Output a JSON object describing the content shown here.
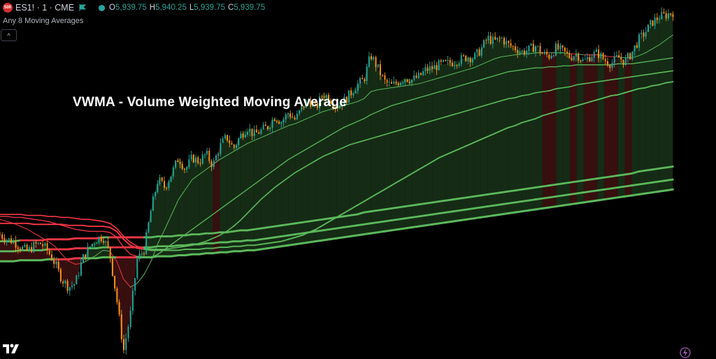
{
  "header": {
    "symbol_badge": "500",
    "symbol": "ES1! · 1 · CME",
    "ohlc": [
      {
        "k": "O",
        "v": "5,939.75"
      },
      {
        "k": "H",
        "v": "5,940.25"
      },
      {
        "k": "L",
        "v": "5,939.75"
      },
      {
        "k": "C",
        "v": "5,939.75"
      }
    ],
    "indicator": "Any 8 Moving Averages",
    "collapse_glyph": "^"
  },
  "overlay_title": "VWMA - Volume Weighted Moving Average",
  "colors": {
    "up": "#26a69a",
    "down": "#f7931a",
    "ma_bull": "#5cb85c",
    "ma_bear": "#f23645",
    "fill_bull": "#1c3a1c",
    "fill_bear": "#4a1414"
  },
  "icons": [
    "tradingview-logo-icon",
    "flag-icon",
    "status-dot-icon",
    "chevron-up-icon",
    "lightning-icon"
  ],
  "chart_data": {
    "type": "line",
    "title": "",
    "x": [
      0,
      10,
      20,
      30,
      40,
      50,
      60,
      70,
      80,
      90,
      100,
      110,
      120,
      130,
      140,
      150,
      160,
      170,
      180,
      190,
      200,
      210,
      220,
      230,
      240,
      250,
      260,
      270,
      280,
      290,
      300,
      310,
      320,
      330,
      340,
      350,
      360,
      370,
      380,
      390,
      400,
      410,
      420,
      430,
      440,
      450,
      460,
      470,
      480,
      490,
      500,
      510,
      520,
      530,
      540,
      550,
      560,
      570,
      580,
      590,
      600,
      610,
      620,
      630,
      640,
      650,
      660,
      670,
      680,
      690,
      700,
      710,
      720,
      730,
      740,
      750,
      760,
      770,
      780,
      790,
      800,
      810,
      820,
      830,
      840,
      850,
      860,
      870,
      880,
      890,
      900,
      910,
      920,
      930,
      940,
      950,
      960,
      970,
      980
    ],
    "series": [
      {
        "values": [
          5765,
          5760,
          5758,
          5752,
          5748,
          5754,
          5756,
          5748,
          5736,
          5720,
          5712,
          5716,
          5740,
          5752,
          5760,
          5763,
          5745,
          5700,
          5648,
          5685,
          5740,
          5750,
          5790,
          5820,
          5812,
          5826,
          5842,
          5830,
          5842,
          5838,
          5846,
          5834,
          5853,
          5863,
          5851,
          5864,
          5872,
          5865,
          5869,
          5873,
          5883,
          5878,
          5887,
          5880,
          5892,
          5900,
          5891,
          5906,
          5902,
          5893,
          5898,
          5906,
          5915,
          5920,
          5945,
          5932,
          5918,
          5914,
          5918,
          5922,
          5920,
          5923,
          5930,
          5932,
          5935,
          5936,
          5938,
          5940,
          5943,
          5942,
          5950,
          5962,
          5958,
          5962,
          5955,
          5952,
          5948,
          5950,
          5954,
          5946,
          5944,
          5952,
          5948,
          5943,
          5946,
          5938,
          5944,
          5947,
          5940,
          5936,
          5943,
          5938,
          5947,
          5960,
          5968,
          5978,
          5983,
          5985,
          5988
        ]
      },
      {
        "values": [
          5780,
          5778,
          5776,
          5773,
          5770,
          5766,
          5762,
          5758,
          5753,
          5745,
          5738,
          5735,
          5736,
          5740,
          5744,
          5749,
          5748,
          5738,
          5720,
          5712,
          5716,
          5725,
          5738,
          5756,
          5770,
          5785,
          5800,
          5810,
          5820,
          5825,
          5830,
          5835,
          5840,
          5844,
          5848,
          5852,
          5856,
          5859,
          5862,
          5865,
          5868,
          5871,
          5874,
          5876,
          5879,
          5882,
          5885,
          5888,
          5890,
          5892,
          5894,
          5896,
          5898,
          5901,
          5908,
          5910,
          5911,
          5912,
          5913,
          5914,
          5915,
          5916,
          5918,
          5920,
          5922,
          5924,
          5926,
          5928,
          5930,
          5932,
          5935,
          5938,
          5941,
          5943,
          5944,
          5945,
          5946,
          5946,
          5947,
          5947,
          5947,
          5947,
          5947,
          5946,
          5946,
          5945,
          5945,
          5945,
          5944,
          5943,
          5943,
          5942,
          5942,
          5944,
          5947,
          5951,
          5955,
          5960,
          5965
        ]
      },
      {
        "values": [
          5783,
          5783,
          5782,
          5782,
          5781,
          5780,
          5779,
          5778,
          5776,
          5774,
          5772,
          5770,
          5769,
          5768,
          5768,
          5768,
          5767,
          5762,
          5752,
          5745,
          5743,
          5742,
          5742,
          5745,
          5750,
          5755,
          5760,
          5765,
          5770,
          5775,
          5780,
          5785,
          5790,
          5795,
          5800,
          5805,
          5810,
          5815,
          5820,
          5825,
          5830,
          5835,
          5840,
          5844,
          5848,
          5852,
          5856,
          5860,
          5864,
          5868,
          5872,
          5875,
          5878,
          5881,
          5885,
          5888,
          5891,
          5894,
          5896,
          5898,
          5900,
          5902,
          5904,
          5906,
          5908,
          5910,
          5912,
          5914,
          5916,
          5918,
          5920,
          5922,
          5924,
          5926,
          5928,
          5929,
          5930,
          5931,
          5932,
          5932,
          5933,
          5933,
          5934,
          5934,
          5935,
          5935,
          5935,
          5935,
          5935,
          5935,
          5936,
          5936,
          5936,
          5937,
          5938,
          5939,
          5940,
          5941,
          5942
        ]
      },
      {
        "values": [
          5785,
          5785,
          5785,
          5785,
          5784,
          5784,
          5784,
          5783,
          5783,
          5782,
          5782,
          5781,
          5780,
          5780,
          5779,
          5778,
          5776,
          5771,
          5763,
          5757,
          5753,
          5751,
          5750,
          5750,
          5750,
          5751,
          5752,
          5753,
          5754,
          5756,
          5758,
          5761,
          5764,
          5768,
          5773,
          5779,
          5786,
          5793,
          5800,
          5806,
          5812,
          5817,
          5822,
          5827,
          5831,
          5835,
          5839,
          5843,
          5846,
          5849,
          5852,
          5855,
          5857,
          5859,
          5861,
          5863,
          5865,
          5867,
          5869,
          5871,
          5873,
          5875,
          5877,
          5879,
          5881,
          5883,
          5885,
          5887,
          5889,
          5891,
          5893,
          5895,
          5897,
          5899,
          5901,
          5902,
          5904,
          5905,
          5907,
          5908,
          5909,
          5911,
          5912,
          5913,
          5915,
          5916,
          5917,
          5918,
          5919,
          5920,
          5921,
          5922,
          5923,
          5924,
          5925,
          5926,
          5927,
          5928,
          5929
        ]
      },
      {
        "values": [
          5776,
          5776,
          5776,
          5776,
          5776,
          5775,
          5775,
          5775,
          5775,
          5775,
          5774,
          5774,
          5774,
          5773,
          5773,
          5773,
          5772,
          5768,
          5760,
          5754,
          5751,
          5750,
          5749,
          5749,
          5749,
          5749,
          5749,
          5750,
          5750,
          5750,
          5751,
          5751,
          5752,
          5752,
          5753,
          5753,
          5754,
          5754,
          5755,
          5756,
          5757,
          5758,
          5760,
          5762,
          5764,
          5767,
          5770,
          5774,
          5778,
          5782,
          5786,
          5790,
          5794,
          5798,
          5802,
          5806,
          5810,
          5814,
          5818,
          5822,
          5826,
          5830,
          5834,
          5838,
          5842,
          5845,
          5848,
          5851,
          5854,
          5857,
          5860,
          5863,
          5866,
          5869,
          5872,
          5874,
          5877,
          5879,
          5881,
          5884,
          5886,
          5888,
          5890,
          5892,
          5894,
          5896,
          5898,
          5900,
          5902,
          5904,
          5905,
          5907,
          5909,
          5911,
          5912,
          5914,
          5915,
          5917,
          5918
        ]
      },
      {
        "values": [
          5758,
          5758,
          5758,
          5759,
          5759,
          5759,
          5759,
          5760,
          5760,
          5760,
          5760,
          5761,
          5761,
          5761,
          5761,
          5762,
          5762,
          5762,
          5762,
          5762,
          5762,
          5762,
          5762,
          5763,
          5763,
          5763,
          5764,
          5764,
          5765,
          5765,
          5766,
          5766,
          5767,
          5767,
          5768,
          5769,
          5769,
          5770,
          5771,
          5772,
          5773,
          5774,
          5775,
          5776,
          5777,
          5778,
          5779,
          5780,
          5781,
          5782,
          5783,
          5784,
          5785,
          5787,
          5788,
          5789,
          5790,
          5791,
          5792,
          5793,
          5794,
          5795,
          5796,
          5797,
          5798,
          5799,
          5800,
          5801,
          5802,
          5803,
          5804,
          5805,
          5806,
          5807,
          5808,
          5809,
          5810,
          5811,
          5812,
          5813,
          5814,
          5815,
          5816,
          5817,
          5818,
          5819,
          5820,
          5821,
          5822,
          5823,
          5824,
          5825,
          5826,
          5828,
          5829,
          5830,
          5831,
          5832,
          5833
        ]
      },
      {
        "values": [
          5748,
          5748,
          5748,
          5749,
          5749,
          5749,
          5749,
          5750,
          5750,
          5750,
          5750,
          5751,
          5751,
          5751,
          5751,
          5752,
          5752,
          5752,
          5752,
          5752,
          5752,
          5752,
          5752,
          5753,
          5753,
          5753,
          5754,
          5754,
          5755,
          5755,
          5756,
          5756,
          5757,
          5757,
          5758,
          5758,
          5759,
          5759,
          5760,
          5761,
          5762,
          5763,
          5764,
          5765,
          5766,
          5767,
          5768,
          5769,
          5770,
          5771,
          5772,
          5773,
          5774,
          5775,
          5776,
          5777,
          5778,
          5779,
          5780,
          5781,
          5782,
          5783,
          5784,
          5785,
          5786,
          5787,
          5788,
          5789,
          5790,
          5791,
          5792,
          5793,
          5794,
          5795,
          5796,
          5797,
          5798,
          5799,
          5800,
          5801,
          5802,
          5803,
          5804,
          5805,
          5806,
          5807,
          5808,
          5809,
          5810,
          5811,
          5812,
          5813,
          5814,
          5815,
          5816,
          5817,
          5818,
          5819,
          5820
        ]
      },
      {
        "values": [
          5738,
          5738,
          5738,
          5739,
          5739,
          5739,
          5739,
          5740,
          5740,
          5740,
          5740,
          5741,
          5741,
          5741,
          5741,
          5742,
          5742,
          5742,
          5742,
          5742,
          5742,
          5742,
          5742,
          5743,
          5743,
          5743,
          5744,
          5744,
          5745,
          5745,
          5746,
          5746,
          5747,
          5747,
          5748,
          5748,
          5749,
          5749,
          5750,
          5751,
          5752,
          5753,
          5754,
          5755,
          5756,
          5757,
          5758,
          5759,
          5760,
          5761,
          5762,
          5763,
          5764,
          5765,
          5766,
          5767,
          5768,
          5769,
          5770,
          5771,
          5772,
          5773,
          5774,
          5775,
          5776,
          5777,
          5778,
          5779,
          5780,
          5781,
          5782,
          5783,
          5784,
          5785,
          5786,
          5787,
          5788,
          5789,
          5790,
          5791,
          5792,
          5793,
          5794,
          5795,
          5796,
          5797,
          5798,
          5799,
          5800,
          5801,
          5802,
          5803,
          5804,
          5805,
          5806,
          5807,
          5808,
          5809,
          5810
        ]
      }
    ],
    "ylim": [
      5640,
      6000
    ],
    "xlim": [
      0,
      1000
    ],
    "grid": false,
    "legend": "none"
  }
}
